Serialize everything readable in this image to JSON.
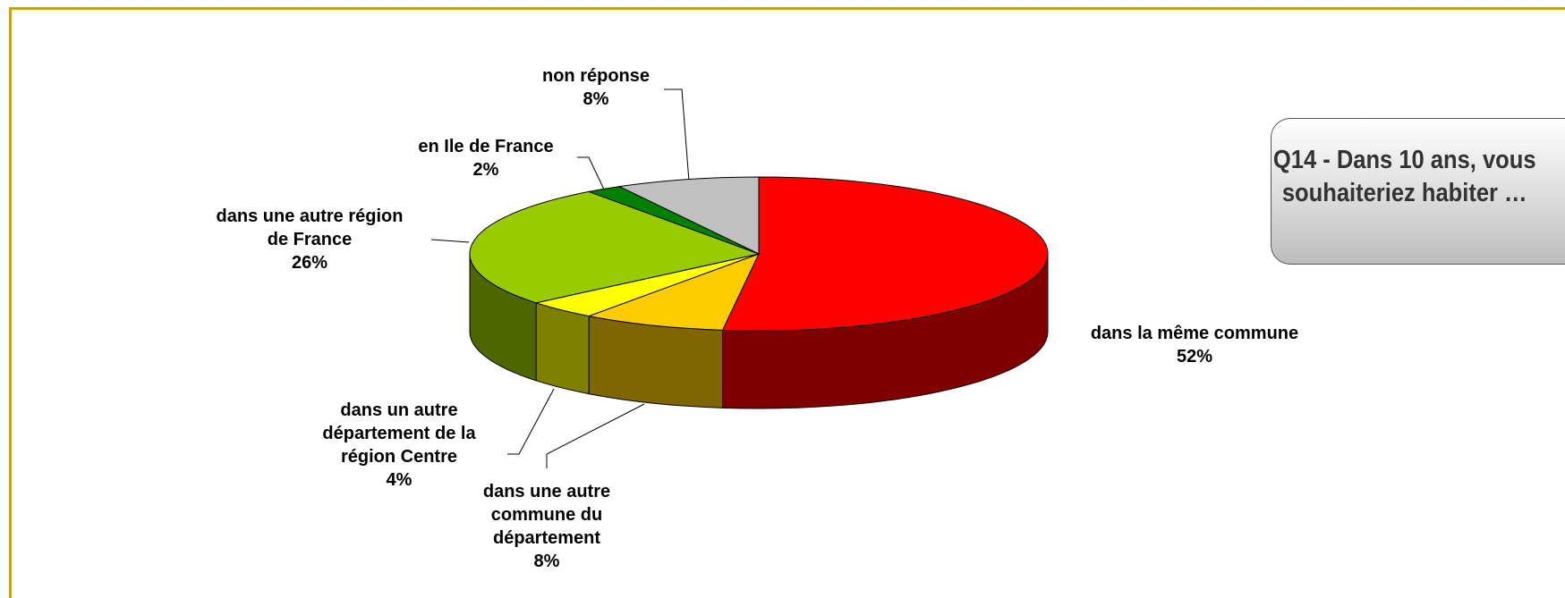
{
  "chart_data": {
    "type": "pie3d",
    "title": "Q14 - Dans 10 ans, vous souhaiteriez habiter …",
    "categories": [
      "dans la même commune",
      "dans une autre\ncommune du\ndépartement",
      "dans un autre\ndépartement de la\nrégion Centre",
      "dans une autre région\nde France",
      "en Ile de France",
      "non réponse"
    ],
    "values": [
      52,
      8,
      4,
      26,
      2,
      8
    ],
    "value_labels": [
      "52%",
      "8%",
      "4%",
      "26%",
      "2%",
      "8%"
    ],
    "colors": [
      "#ff0000",
      "#ffcc00",
      "#ffff00",
      "#99cc00",
      "#008000",
      "#c0c0c0"
    ]
  }
}
